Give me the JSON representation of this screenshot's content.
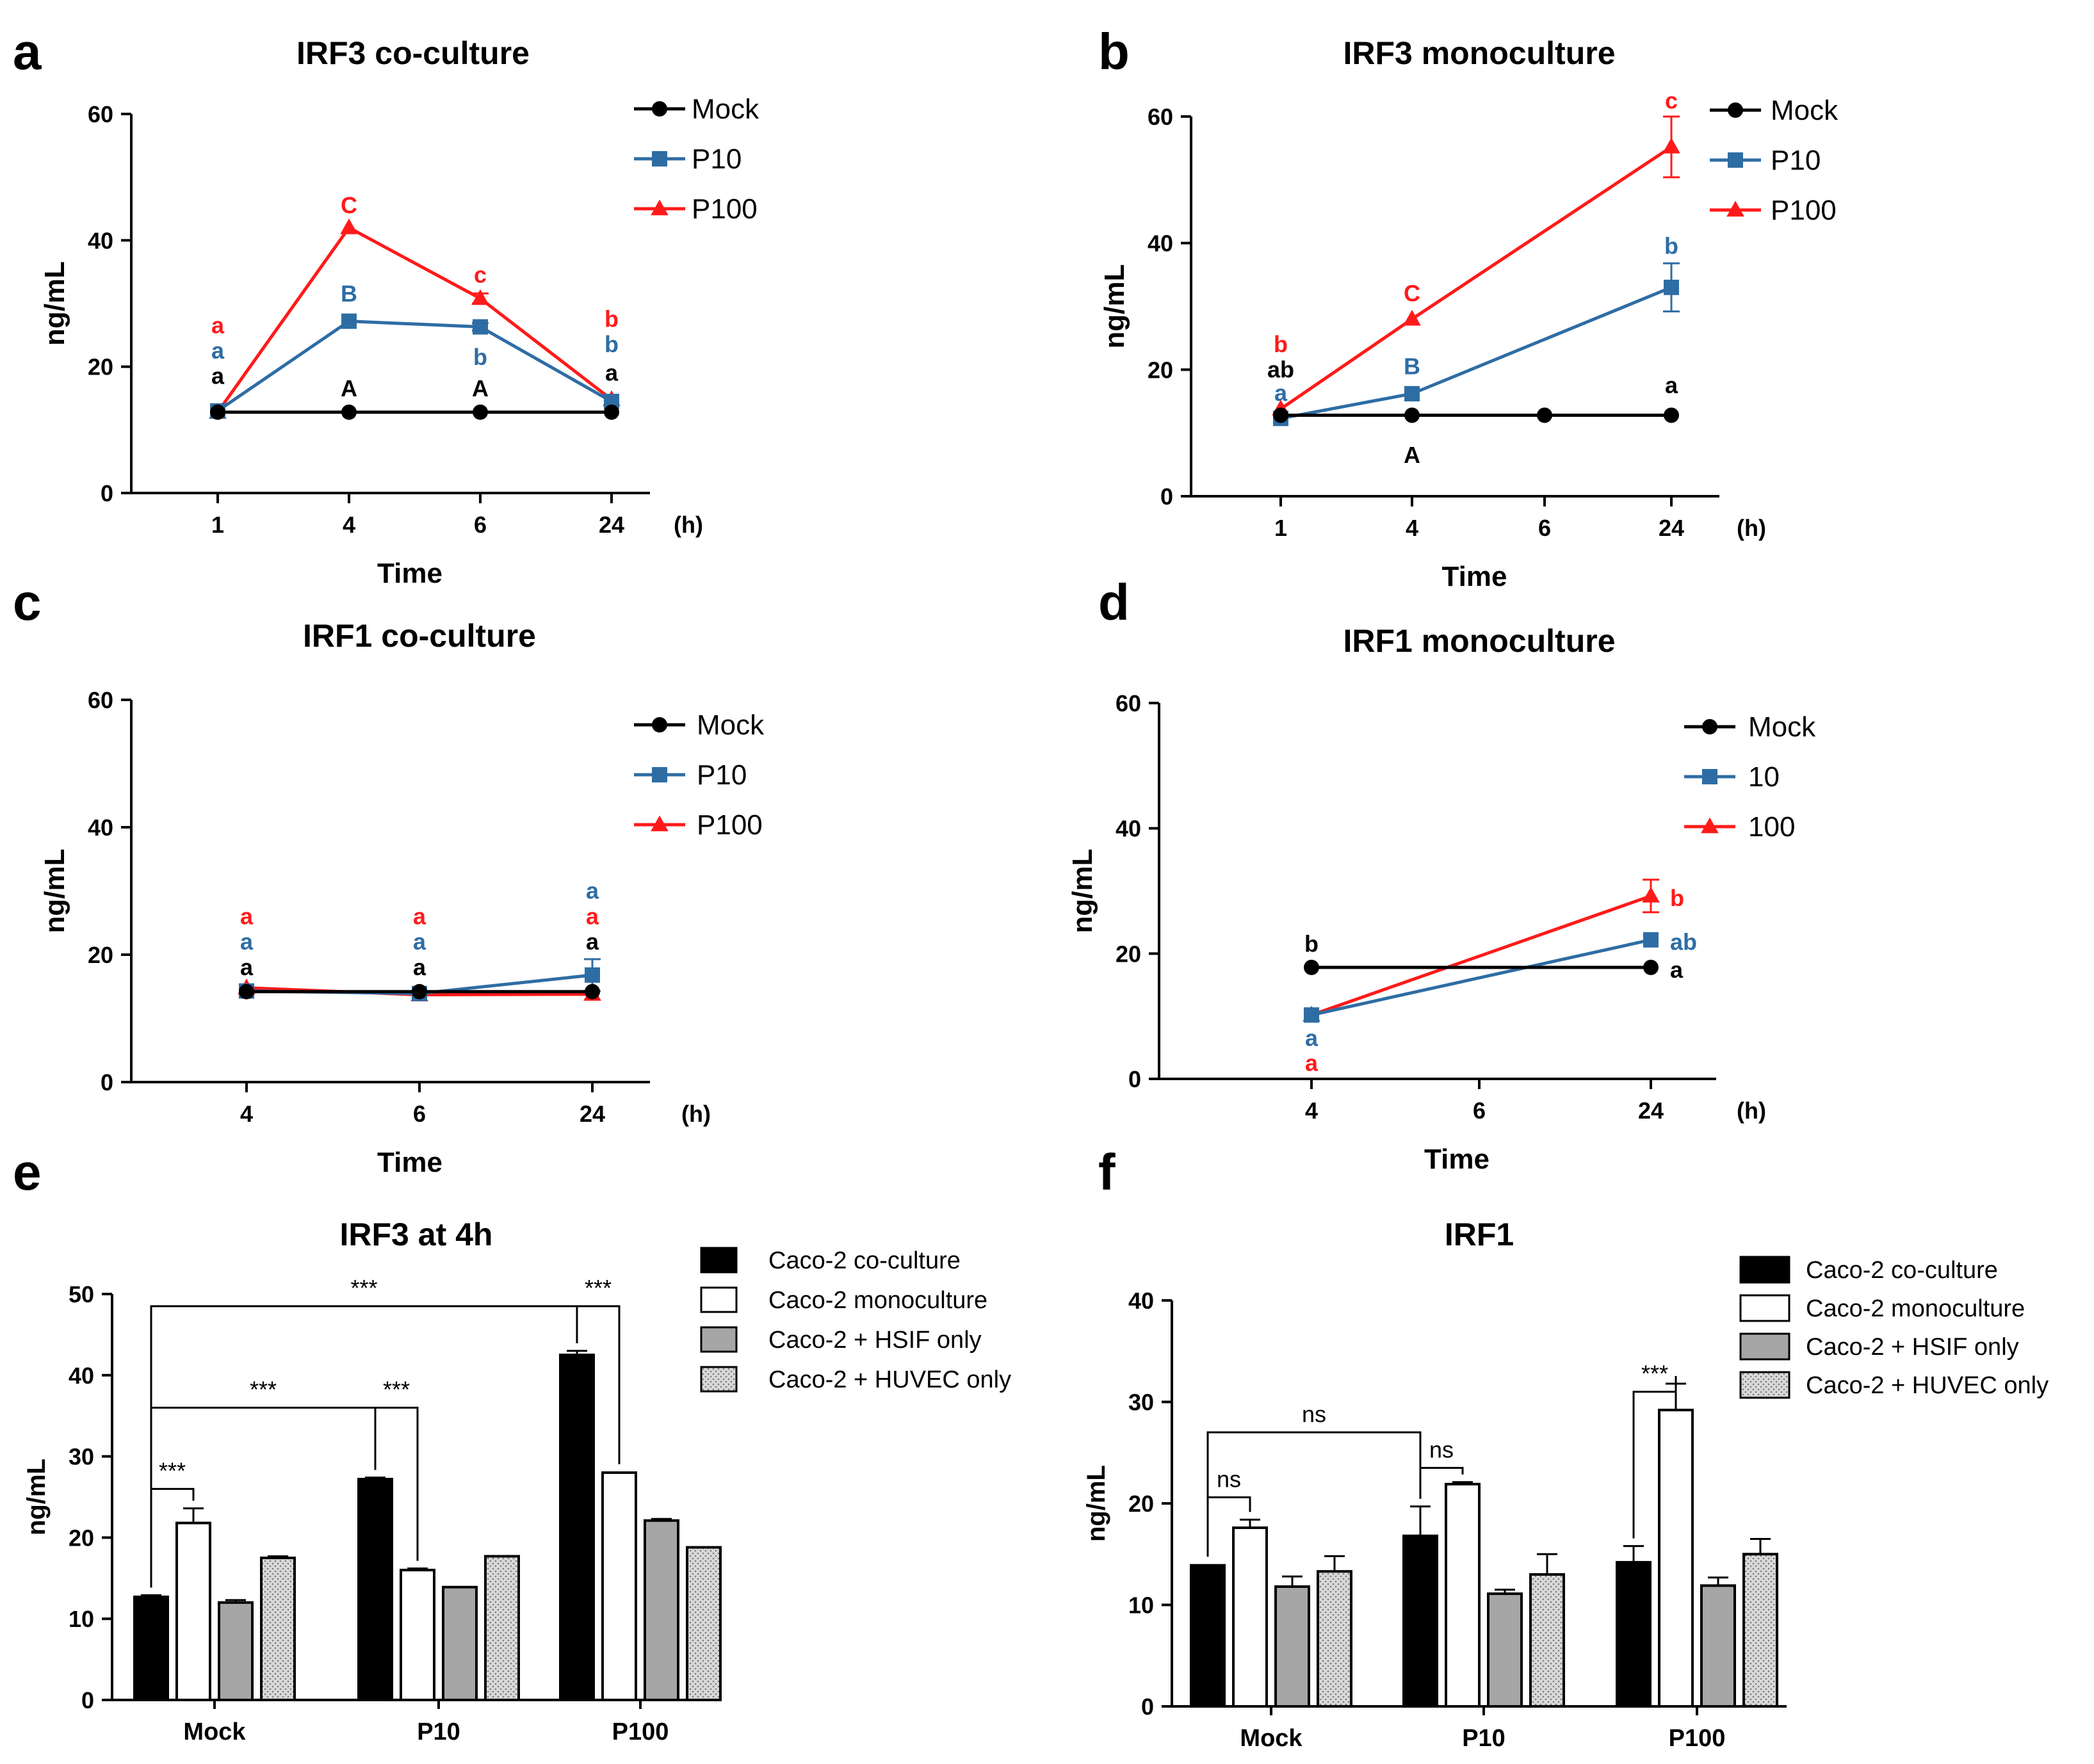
{
  "colors": {
    "mock": "#000000",
    "p10": "#2e6da4",
    "p100": "#ff1a1a",
    "bar_coculture": "#000000",
    "bar_monoculture": "#ffffff",
    "bar_hsif": "#a6a6a6",
    "bar_huvec": "#d9d9d9",
    "axis": "#000000"
  },
  "chart_data": [
    {
      "id": "a",
      "panel_label": "a",
      "type": "line",
      "title": "IRF3 co-culture",
      "xlabel": "Time",
      "ylabel": "ng/mL",
      "x_unit": "(h)",
      "x_ticks": [
        "1",
        "4",
        "6",
        "24"
      ],
      "ylim": [
        0,
        60
      ],
      "y_ticks": [
        0,
        20,
        40,
        60
      ],
      "legend": [
        "Mock",
        "P10",
        "P100"
      ],
      "series": [
        {
          "name": "Mock",
          "color_key": "mock",
          "marker": "circle",
          "x": [
            "1",
            "4",
            "6",
            "24"
          ],
          "values": [
            12.8,
            12.8,
            12.8,
            12.8
          ],
          "errors": [
            0,
            0,
            0,
            0
          ]
        },
        {
          "name": "P10",
          "color_key": "p10",
          "marker": "square",
          "x": [
            "1",
            "4",
            "6",
            "24"
          ],
          "values": [
            13.0,
            27.2,
            26.3,
            14.5
          ],
          "errors": [
            0.3,
            0.4,
            0.6,
            0.5
          ]
        },
        {
          "name": "P100",
          "color_key": "p100",
          "marker": "triangle",
          "x": [
            "1",
            "4",
            "6",
            "24"
          ],
          "values": [
            12.8,
            42.0,
            30.8,
            14.8
          ],
          "errors": [
            0.3,
            0.5,
            0.8,
            0.5
          ]
        }
      ],
      "annotations": [
        {
          "text": "a",
          "x": "1",
          "y": 26.5,
          "color_key": "p100"
        },
        {
          "text": "a",
          "x": "1",
          "y": 22.5,
          "color_key": "p10"
        },
        {
          "text": "a",
          "x": "1",
          "y": 18.5,
          "color_key": "mock"
        },
        {
          "text": "C",
          "x": "4",
          "y": 45.5,
          "color_key": "p100"
        },
        {
          "text": "B",
          "x": "4",
          "y": 31.5,
          "color_key": "p10"
        },
        {
          "text": "A",
          "x": "4",
          "y": 16.5,
          "color_key": "mock"
        },
        {
          "text": "c",
          "x": "6",
          "y": 34.5,
          "color_key": "p100"
        },
        {
          "text": "b",
          "x": "6",
          "y": 21.5,
          "color_key": "p10"
        },
        {
          "text": "A",
          "x": "6",
          "y": 16.5,
          "color_key": "mock"
        },
        {
          "text": "b",
          "x": "24",
          "y": 27.5,
          "color_key": "p100"
        },
        {
          "text": "b",
          "x": "24",
          "y": 23.5,
          "color_key": "p10"
        },
        {
          "text": "a",
          "x": "24",
          "y": 19.0,
          "color_key": "mock"
        }
      ]
    },
    {
      "id": "b",
      "panel_label": "b",
      "type": "line",
      "title": "IRF3 monoculture",
      "xlabel": "Time",
      "ylabel": "ng/mL",
      "x_unit": "(h)",
      "x_ticks": [
        "1",
        "4",
        "6",
        "24"
      ],
      "ylim": [
        0,
        60
      ],
      "y_ticks": [
        0,
        20,
        40,
        60
      ],
      "legend": [
        "Mock",
        "P10",
        "P100"
      ],
      "series": [
        {
          "name": "Mock",
          "color_key": "mock",
          "marker": "circle",
          "x": [
            "1",
            "4",
            "6",
            "24"
          ],
          "values": [
            12.8,
            12.8,
            12.8,
            12.8
          ],
          "errors": [
            0,
            0,
            0,
            0
          ]
        },
        {
          "name": "P10",
          "color_key": "p10",
          "marker": "square",
          "x": [
            "1",
            "4",
            "24"
          ],
          "values": [
            12.3,
            16.2,
            33.0
          ],
          "errors": [
            0.3,
            0.5,
            3.8
          ]
        },
        {
          "name": "P100",
          "color_key": "p100",
          "marker": "triangle",
          "x": [
            "1",
            "4",
            "24"
          ],
          "values": [
            13.8,
            28.0,
            55.2
          ],
          "errors": [
            0.3,
            0.4,
            4.8
          ]
        }
      ],
      "annotations": [
        {
          "text": "b",
          "x": "1",
          "y": 24.0,
          "color_key": "p100"
        },
        {
          "text": "ab",
          "x": "1",
          "y": 20.0,
          "color_key": "mock"
        },
        {
          "text": "a",
          "x": "1",
          "y": 16.3,
          "color_key": "p10"
        },
        {
          "text": "C",
          "x": "4",
          "y": 32.0,
          "color_key": "p100"
        },
        {
          "text": "B",
          "x": "4",
          "y": 20.5,
          "color_key": "p10"
        },
        {
          "text": "A",
          "x": "4",
          "y": 6.5,
          "color_key": "mock"
        },
        {
          "text": "c",
          "x": "24",
          "y": 62.5,
          "color_key": "p100"
        },
        {
          "text": "b",
          "x": "24",
          "y": 39.5,
          "color_key": "p10"
        },
        {
          "text": "a",
          "x": "24",
          "y": 17.5,
          "color_key": "mock"
        }
      ]
    },
    {
      "id": "c",
      "panel_label": "c",
      "type": "line",
      "title": "IRF1 co-culture",
      "xlabel": "Time",
      "ylabel": "ng/mL",
      "x_unit": "(h)",
      "x_ticks": [
        "4",
        "6",
        "24"
      ],
      "ylim": [
        0,
        60
      ],
      "y_ticks": [
        0,
        20,
        40,
        60
      ],
      "legend": [
        "Mock",
        "P10",
        "P100"
      ],
      "series": [
        {
          "name": "Mock",
          "color_key": "mock",
          "marker": "circle",
          "x": [
            "4",
            "6",
            "24"
          ],
          "values": [
            14.2,
            14.2,
            14.2
          ],
          "errors": [
            0.3,
            0.3,
            0.3
          ]
        },
        {
          "name": "P10",
          "color_key": "p10",
          "marker": "square",
          "x": [
            "4",
            "6",
            "24"
          ],
          "values": [
            14.3,
            13.9,
            16.8
          ],
          "errors": [
            0.3,
            0.3,
            2.5
          ]
        },
        {
          "name": "P100",
          "color_key": "p100",
          "marker": "triangle",
          "x": [
            "4",
            "6",
            "24"
          ],
          "values": [
            14.8,
            13.7,
            13.8
          ],
          "errors": [
            0.3,
            0.3,
            0.3
          ]
        }
      ],
      "annotations": [
        {
          "text": "a",
          "x": "4",
          "y": 26.0,
          "color_key": "p100"
        },
        {
          "text": "a",
          "x": "4",
          "y": 22.0,
          "color_key": "p10"
        },
        {
          "text": "a",
          "x": "4",
          "y": 18.0,
          "color_key": "mock"
        },
        {
          "text": "a",
          "x": "6",
          "y": 26.0,
          "color_key": "p100"
        },
        {
          "text": "a",
          "x": "6",
          "y": 22.0,
          "color_key": "p10"
        },
        {
          "text": "a",
          "x": "6",
          "y": 18.0,
          "color_key": "mock"
        },
        {
          "text": "a",
          "x": "24",
          "y": 30.0,
          "color_key": "p10"
        },
        {
          "text": "a",
          "x": "24",
          "y": 26.0,
          "color_key": "p100"
        },
        {
          "text": "a",
          "x": "24",
          "y": 22.0,
          "color_key": "mock"
        }
      ]
    },
    {
      "id": "d",
      "panel_label": "d",
      "type": "line",
      "title": "IRF1 monoculture",
      "xlabel": "Time",
      "ylabel": "ng/mL",
      "x_unit": "(h)",
      "x_ticks": [
        "4",
        "6",
        "24"
      ],
      "ylim": [
        0,
        60
      ],
      "y_ticks": [
        0,
        20,
        40,
        60
      ],
      "legend": [
        "Mock",
        "10",
        "100"
      ],
      "series": [
        {
          "name": "Mock",
          "color_key": "mock",
          "marker": "circle",
          "x": [
            "4",
            "24"
          ],
          "values": [
            17.8,
            17.8
          ],
          "errors": [
            0.2,
            0.2
          ]
        },
        {
          "name": "10",
          "color_key": "p10",
          "marker": "square",
          "x": [
            "4",
            "24"
          ],
          "values": [
            10.2,
            22.2
          ],
          "errors": [
            0.5,
            0.5
          ]
        },
        {
          "name": "100",
          "color_key": "p100",
          "marker": "triangle",
          "x": [
            "4",
            "24"
          ],
          "values": [
            10.2,
            29.2
          ],
          "errors": [
            0.5,
            2.6
          ]
        }
      ],
      "annotations": [
        {
          "text": "b",
          "x": "4",
          "y": 21.5,
          "color_key": "mock"
        },
        {
          "text": "a",
          "x": "4",
          "y": 6.5,
          "color_key": "p10"
        },
        {
          "text": "a",
          "x": "4",
          "y": 2.5,
          "color_key": "p100"
        },
        {
          "text": "b",
          "x": "24",
          "y": 28.8,
          "color_key": "p100",
          "side": "right"
        },
        {
          "text": "ab",
          "x": "24",
          "y": 21.8,
          "color_key": "p10",
          "side": "right"
        },
        {
          "text": "a",
          "x": "24",
          "y": 17.4,
          "color_key": "mock",
          "side": "right"
        }
      ]
    },
    {
      "id": "e",
      "panel_label": "e",
      "type": "bar",
      "title": "IRF3 at 4h",
      "xlabel": "",
      "ylabel": "ng/mL",
      "categories": [
        "Mock",
        "P10",
        "P100"
      ],
      "ylim": [
        0,
        50
      ],
      "y_ticks": [
        0,
        10,
        20,
        30,
        40,
        50
      ],
      "legend": [
        "Caco-2 co-culture",
        "Caco-2 monoculture",
        "Caco-2 + HSIF only",
        "Caco-2 + HUVEC only"
      ],
      "series": [
        {
          "name": "Caco-2 co-culture",
          "fill_key": "bar_coculture",
          "values": [
            12.7,
            27.2,
            42.5
          ],
          "errors": [
            0.2,
            0.2,
            0.5
          ]
        },
        {
          "name": "Caco-2 monoculture",
          "fill_key": "bar_monoculture",
          "values": [
            21.8,
            16.0,
            28.0
          ],
          "errors": [
            1.8,
            0.2,
            0.1
          ]
        },
        {
          "name": "Caco-2 + HSIF only",
          "fill_key": "bar_hsif",
          "values": [
            12.0,
            13.9,
            22.1
          ],
          "errors": [
            0.3,
            0.1,
            0.2
          ]
        },
        {
          "name": "Caco-2 + HUVEC only",
          "fill_key": "bar_huvec",
          "values": [
            17.5,
            17.7,
            18.8
          ],
          "errors": [
            0.2,
            0.1,
            0.1
          ]
        }
      ],
      "brackets": [
        {
          "label": "***",
          "from": [
            0,
            0
          ],
          "to": [
            2,
            0
          ],
          "y": 48.5
        },
        {
          "label": "***",
          "from": [
            0,
            0
          ],
          "to": [
            1,
            0
          ],
          "y": 36.0
        },
        {
          "label": "***",
          "from": [
            2,
            0
          ],
          "to": [
            2,
            1
          ],
          "y": 48.5
        },
        {
          "label": "***",
          "from": [
            1,
            0
          ],
          "to": [
            1,
            1
          ],
          "y": 36.0
        },
        {
          "label": "***",
          "from": [
            0,
            0
          ],
          "to": [
            0,
            1
          ],
          "y": 26.0
        }
      ]
    },
    {
      "id": "f",
      "panel_label": "f",
      "type": "bar",
      "title": "IRF1",
      "xlabel": "",
      "ylabel": "ng/mL",
      "categories": [
        "Mock",
        "P10",
        "P100"
      ],
      "ylim": [
        0,
        40
      ],
      "y_ticks": [
        0,
        10,
        20,
        30,
        40
      ],
      "legend": [
        "Caco-2 co-culture",
        "Caco-2 monoculture",
        "Caco-2 + HSIF only",
        "Caco-2 + HUVEC only"
      ],
      "series": [
        {
          "name": "Caco-2 co-culture",
          "fill_key": "bar_coculture",
          "values": [
            13.9,
            16.8,
            14.2
          ],
          "errors": [
            0.1,
            2.9,
            1.6
          ]
        },
        {
          "name": "Caco-2 monoculture",
          "fill_key": "bar_monoculture",
          "values": [
            17.6,
            21.9,
            29.2
          ],
          "errors": [
            0.8,
            0.2,
            2.6
          ]
        },
        {
          "name": "Caco-2 + HSIF only",
          "fill_key": "bar_hsif",
          "values": [
            11.8,
            11.1,
            11.9
          ],
          "errors": [
            1.0,
            0.4,
            0.8
          ]
        },
        {
          "name": "Caco-2 + HUVEC only",
          "fill_key": "bar_huvec",
          "values": [
            13.3,
            13.0,
            15.0
          ],
          "errors": [
            1.5,
            2.0,
            1.5
          ]
        }
      ],
      "brackets": [
        {
          "label": "ns",
          "from": [
            0,
            0
          ],
          "to": [
            1,
            0
          ],
          "y": 27.0
        },
        {
          "label": "ns",
          "from": [
            0,
            0
          ],
          "to": [
            0,
            1
          ],
          "y": 20.6
        },
        {
          "label": "ns",
          "from": [
            1,
            0
          ],
          "to": [
            1,
            1
          ],
          "y": 23.5
        },
        {
          "label": "***",
          "from": [
            2,
            0
          ],
          "to": [
            2,
            1
          ],
          "y": 31.0
        }
      ]
    }
  ]
}
